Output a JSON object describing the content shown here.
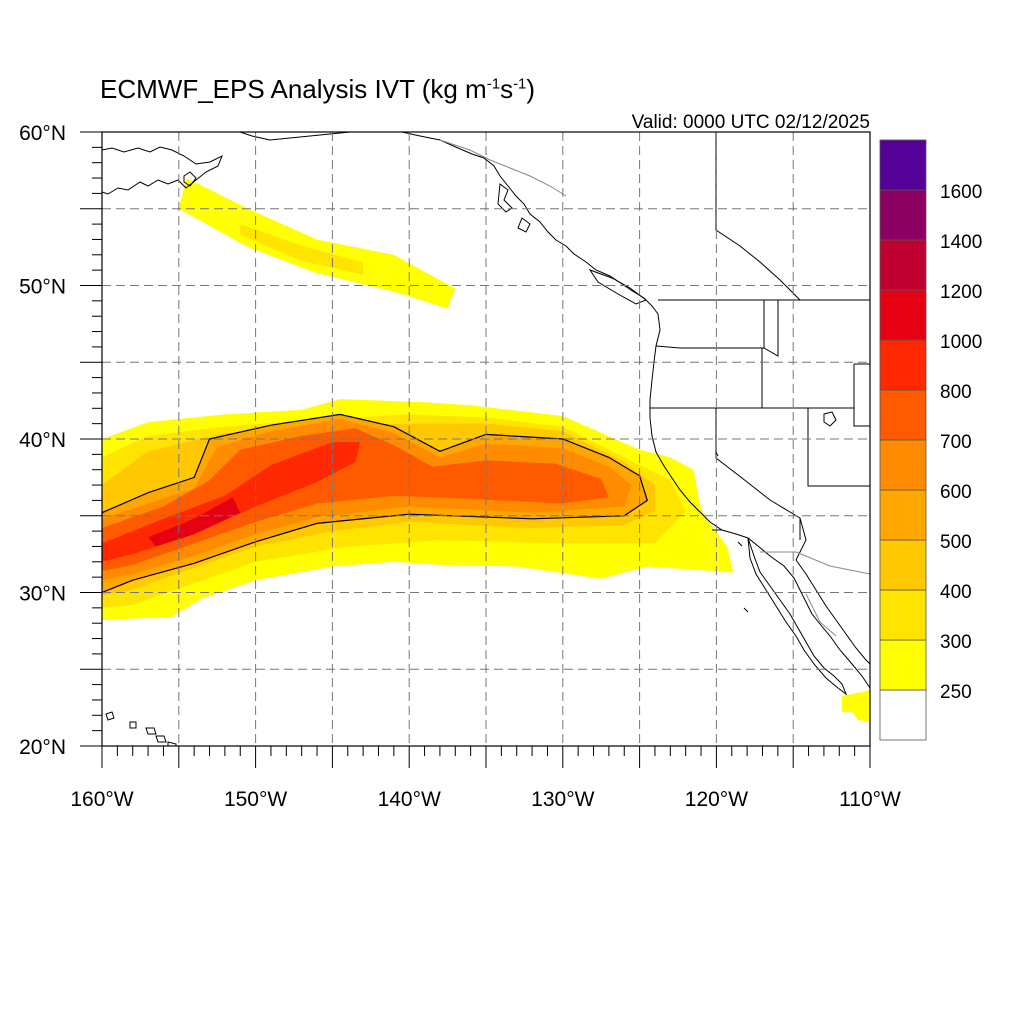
{
  "title": {
    "prefix": "ECMWF_EPS Analysis IVT (kg m",
    "exp1": "-1",
    "mid": "s",
    "exp2": "-1",
    "suffix": ")"
  },
  "valid_time": "Valid: 0000 UTC 02/12/2025",
  "map": {
    "lon_range": [
      -160,
      -110
    ],
    "lat_range": [
      20,
      60
    ],
    "grid_interval_deg": 5,
    "grid": true,
    "lon_labels": [
      {
        "value": -160,
        "label": "160°W"
      },
      {
        "value": -150,
        "label": "150°W"
      },
      {
        "value": -140,
        "label": "140°W"
      },
      {
        "value": -130,
        "label": "130°W"
      },
      {
        "value": -120,
        "label": "120°W"
      },
      {
        "value": -110,
        "label": "110°W"
      }
    ],
    "lat_labels": [
      {
        "value": 60,
        "label": "60°N"
      },
      {
        "value": 50,
        "label": "50°N"
      },
      {
        "value": 40,
        "label": "40°N"
      },
      {
        "value": 30,
        "label": "30°N"
      },
      {
        "value": 20,
        "label": "20°N"
      }
    ],
    "contour_value": 500,
    "ivt_plumes": [
      {
        "level": 250,
        "color": "#ffff00",
        "lonlat": [
          [
            -154.5,
            57
          ],
          [
            -150.5,
            55
          ],
          [
            -146,
            53
          ],
          [
            -141,
            52
          ],
          [
            -137,
            49.8
          ],
          [
            -137.5,
            48.5
          ],
          [
            -141,
            49.6
          ],
          [
            -146,
            50.8
          ],
          [
            -150.5,
            52.5
          ],
          [
            -155,
            55
          ]
        ]
      },
      {
        "level": 300,
        "color": "#ffe400",
        "lonlat": [
          [
            -151,
            54
          ],
          [
            -147,
            52.6
          ],
          [
            -143,
            51.5
          ],
          [
            -143,
            50.7
          ],
          [
            -147,
            51.6
          ],
          [
            -151,
            53.3
          ]
        ]
      },
      {
        "level": 250,
        "color": "#ffff00",
        "lonlat": [
          [
            -160,
            40
          ],
          [
            -157,
            41.1
          ],
          [
            -152,
            41.6
          ],
          [
            -147,
            41.9
          ],
          [
            -144.5,
            42.6
          ],
          [
            -139,
            42.4
          ],
          [
            -136,
            42.2
          ],
          [
            -130,
            41.5
          ],
          [
            -125,
            39.3
          ],
          [
            -123,
            38.8
          ],
          [
            -121.5,
            38
          ],
          [
            -121,
            35.5
          ],
          [
            -120.5,
            34.6
          ],
          [
            -119.3,
            33
          ],
          [
            -118.9,
            31.3
          ],
          [
            -124.5,
            31.7
          ],
          [
            -127.5,
            30.9
          ],
          [
            -133,
            31.7
          ],
          [
            -138,
            31.8
          ],
          [
            -141,
            32
          ],
          [
            -145,
            31.7
          ],
          [
            -150,
            30.8
          ],
          [
            -153.5,
            29.6
          ],
          [
            -155.5,
            28.4
          ],
          [
            -158,
            28.3
          ],
          [
            -160,
            28.2
          ]
        ]
      },
      {
        "level": 300,
        "color": "#ffe400",
        "lonlat": [
          [
            -160,
            38.8
          ],
          [
            -157,
            40.2
          ],
          [
            -152,
            40.8
          ],
          [
            -147,
            41.2
          ],
          [
            -140,
            41.6
          ],
          [
            -135,
            41.4
          ],
          [
            -130,
            40.8
          ],
          [
            -126,
            38.8
          ],
          [
            -123,
            37.3
          ],
          [
            -122,
            35.3
          ],
          [
            -124,
            33.2
          ],
          [
            -130,
            33.2
          ],
          [
            -138,
            33.4
          ],
          [
            -144,
            33
          ],
          [
            -150,
            32
          ],
          [
            -154,
            30.6
          ],
          [
            -158,
            29.2
          ],
          [
            -160,
            29
          ]
        ]
      },
      {
        "level": 400,
        "color": "#ffc800",
        "lonlat": [
          [
            -160,
            37
          ],
          [
            -157,
            39.2
          ],
          [
            -152,
            40.4
          ],
          [
            -147,
            40.8
          ],
          [
            -140,
            41
          ],
          [
            -135,
            41
          ],
          [
            -130,
            40.5
          ],
          [
            -126,
            38.5
          ],
          [
            -124,
            37
          ],
          [
            -124,
            35.3
          ],
          [
            -126,
            34.4
          ],
          [
            -132,
            34.2
          ],
          [
            -140,
            34.6
          ],
          [
            -145,
            34
          ],
          [
            -150,
            33
          ],
          [
            -154,
            31.6
          ],
          [
            -158,
            30.2
          ],
          [
            -160,
            29.8
          ]
        ]
      },
      {
        "level": 500,
        "color": "#ffa700",
        "lonlat": [
          [
            -160,
            35.2
          ],
          [
            -157,
            36.5
          ],
          [
            -154,
            37.5
          ],
          [
            -153,
            40
          ],
          [
            -149,
            40.9
          ],
          [
            -144.5,
            41.6
          ],
          [
            -141,
            40.8
          ],
          [
            -138,
            39.2
          ],
          [
            -135,
            40.3
          ],
          [
            -130,
            40
          ],
          [
            -127,
            38.8
          ],
          [
            -125,
            37.6
          ],
          [
            -124.5,
            36
          ],
          [
            -126,
            35
          ],
          [
            -132,
            34.8
          ],
          [
            -140,
            35.1
          ],
          [
            -146,
            34.5
          ],
          [
            -150,
            33.3
          ],
          [
            -154,
            31.9
          ],
          [
            -158,
            30.8
          ],
          [
            -160,
            30
          ]
        ]
      },
      {
        "level": 600,
        "color": "#ff8c00",
        "lonlat": [
          [
            -160,
            34.8
          ],
          [
            -157,
            35.8
          ],
          [
            -154,
            36.8
          ],
          [
            -152.5,
            39.5
          ],
          [
            -149,
            40.5
          ],
          [
            -144.5,
            41.3
          ],
          [
            -141,
            40.4
          ],
          [
            -138,
            38.8
          ],
          [
            -135,
            39.7
          ],
          [
            -130,
            39.4
          ],
          [
            -127,
            38.2
          ],
          [
            -125.5,
            37
          ],
          [
            -126,
            35.6
          ],
          [
            -132,
            35.2
          ],
          [
            -140,
            35.6
          ],
          [
            -146,
            34.9
          ],
          [
            -150,
            33.8
          ],
          [
            -154,
            32.4
          ],
          [
            -158,
            31.2
          ],
          [
            -160,
            30.8
          ]
        ]
      },
      {
        "level": 700,
        "color": "#ff5a00",
        "lonlat": [
          [
            -160,
            34.2
          ],
          [
            -156,
            35.6
          ],
          [
            -153,
            37.3
          ],
          [
            -151,
            39.3
          ],
          [
            -147,
            40.2
          ],
          [
            -143.5,
            40.7
          ],
          [
            -141,
            39.6
          ],
          [
            -138.5,
            38.2
          ],
          [
            -135,
            38.6
          ],
          [
            -130.5,
            38.4
          ],
          [
            -127.5,
            37.4
          ],
          [
            -127,
            36.2
          ],
          [
            -130,
            35.8
          ],
          [
            -136,
            36.1
          ],
          [
            -141,
            36.3
          ],
          [
            -146,
            35.8
          ],
          [
            -150,
            34.6
          ],
          [
            -154,
            33.2
          ],
          [
            -158,
            31.8
          ],
          [
            -160,
            31.4
          ]
        ]
      },
      {
        "level": 800,
        "color": "#ff2800",
        "lonlat": [
          [
            -160,
            33.2
          ],
          [
            -156,
            34.8
          ],
          [
            -152,
            36.3
          ],
          [
            -149,
            38.3
          ],
          [
            -145,
            39.8
          ],
          [
            -143.2,
            39.8
          ],
          [
            -143.5,
            38.5
          ],
          [
            -146,
            37.2
          ],
          [
            -150,
            35.6
          ],
          [
            -154,
            33.8
          ],
          [
            -158,
            32.5
          ],
          [
            -160,
            32
          ]
        ]
      },
      {
        "level": 1000,
        "color": "#e60013",
        "lonlat": [
          [
            -157,
            33.6
          ],
          [
            -154,
            34.8
          ],
          [
            -151.5,
            36.2
          ],
          [
            -151,
            35.2
          ],
          [
            -154,
            33.8
          ],
          [
            -156.5,
            33
          ]
        ]
      }
    ]
  },
  "colorbar": {
    "colors": [
      "#ffffff",
      "#ffff00",
      "#ffe400",
      "#ffc800",
      "#ffa700",
      "#ff8c00",
      "#ff5a00",
      "#ff2800",
      "#e60013",
      "#c00030",
      "#8c0064",
      "#550096"
    ],
    "labels": [
      "250",
      "300",
      "400",
      "500",
      "600",
      "700",
      "800",
      "1000",
      "1200",
      "1400",
      "1600"
    ]
  }
}
